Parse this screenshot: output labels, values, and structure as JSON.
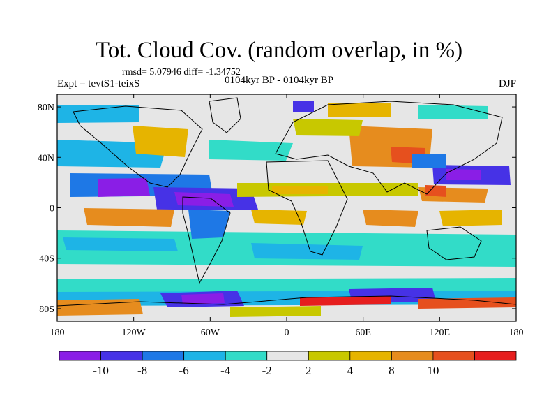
{
  "title": "Tot. Cloud Cov. (random overlap, in %)",
  "stats": "rmsd= 5.07946 diff= -1.34752",
  "experiment": "Expt = tevtS1-teixS",
  "period": "0104kyr BP - 0104kyr BP",
  "season": "DJF",
  "x_ticks": [
    "180",
    "120W",
    "60W",
    "0",
    "60E",
    "120E",
    "180"
  ],
  "y_ticks": [
    "80N",
    "40N",
    "0",
    "40S",
    "80S"
  ],
  "colorbar": {
    "labels": [
      "-10",
      "-8",
      "-6",
      "-4",
      "-2",
      "2",
      "4",
      "8",
      "10"
    ],
    "colors": [
      "#8a1ee6",
      "#4632e6",
      "#1e78e6",
      "#1eb4e6",
      "#32dcc8",
      "#e6e6e6",
      "#c8c800",
      "#e6b400",
      "#e68c1e",
      "#e6501e",
      "#e61e1e"
    ]
  }
}
